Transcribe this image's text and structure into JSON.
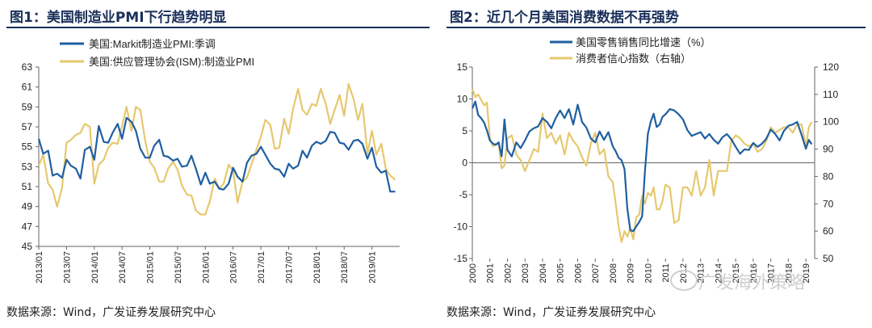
{
  "left": {
    "title": "图1：美国制造业PMI下行趋势明显",
    "source": "数据来源：Wind，广发证券发展研究中心",
    "chart_data": {
      "type": "line",
      "legend_position": "top-left",
      "ylim": [
        45,
        63
      ],
      "yticks": [
        45,
        47,
        49,
        51,
        53,
        55,
        57,
        59,
        61,
        63
      ],
      "xlim": [
        2013.0,
        2019.5
      ],
      "xtick_labels": [
        "2013/01",
        "2013/07",
        "2014/01",
        "2014/07",
        "2015/01",
        "2015/07",
        "2016/01",
        "2016/07",
        "2017/01",
        "2017/07",
        "2018/01",
        "2018/07",
        "2019/01"
      ],
      "xtick_values": [
        2013.0,
        2013.5,
        2014.0,
        2014.5,
        2015.0,
        2015.5,
        2016.0,
        2016.5,
        2017.0,
        2017.5,
        2018.0,
        2018.5,
        2019.0
      ],
      "series": [
        {
          "name": "美国:Markit制造业PMI:季调",
          "color": "#1f5fa1",
          "x": [
            2013.0,
            2013.08,
            2013.17,
            2013.25,
            2013.33,
            2013.42,
            2013.5,
            2013.58,
            2013.67,
            2013.75,
            2013.83,
            2013.92,
            2014.0,
            2014.08,
            2014.17,
            2014.25,
            2014.33,
            2014.42,
            2014.5,
            2014.58,
            2014.67,
            2014.75,
            2014.83,
            2014.92,
            2015.0,
            2015.08,
            2015.17,
            2015.25,
            2015.33,
            2015.42,
            2015.5,
            2015.58,
            2015.67,
            2015.75,
            2015.83,
            2015.92,
            2016.0,
            2016.08,
            2016.17,
            2016.25,
            2016.33,
            2016.42,
            2016.5,
            2016.58,
            2016.67,
            2016.75,
            2016.83,
            2016.92,
            2017.0,
            2017.08,
            2017.17,
            2017.25,
            2017.33,
            2017.42,
            2017.5,
            2017.58,
            2017.67,
            2017.75,
            2017.83,
            2017.92,
            2018.0,
            2018.08,
            2018.17,
            2018.25,
            2018.33,
            2018.42,
            2018.5,
            2018.58,
            2018.67,
            2018.75,
            2018.83,
            2018.92,
            2019.0,
            2019.08,
            2019.17,
            2019.25,
            2019.33,
            2019.42
          ],
          "values": [
            55.8,
            54.3,
            54.6,
            52.1,
            52.3,
            51.9,
            53.7,
            53.1,
            52.8,
            51.8,
            54.7,
            55.0,
            53.7,
            57.1,
            55.5,
            55.4,
            56.4,
            57.3,
            55.8,
            57.9,
            57.5,
            56.6,
            54.8,
            53.9,
            53.9,
            55.1,
            55.7,
            54.1,
            54.0,
            53.6,
            53.8,
            53.0,
            53.1,
            54.1,
            52.8,
            51.2,
            52.4,
            51.3,
            51.5,
            50.8,
            50.7,
            51.3,
            52.9,
            52.0,
            51.5,
            53.4,
            54.1,
            54.3,
            55.0,
            54.2,
            53.3,
            52.8,
            52.7,
            52.0,
            53.3,
            52.8,
            53.1,
            54.6,
            53.9,
            55.1,
            55.5,
            55.3,
            55.6,
            56.5,
            56.4,
            55.4,
            55.3,
            54.7,
            55.6,
            55.7,
            55.3,
            53.8,
            54.9,
            53.0,
            52.4,
            52.6,
            50.5,
            50.5
          ]
        },
        {
          "name": "美国:供应管理协会(ISM):制造业PMI",
          "color": "#e6c86e",
          "x": [
            2013.0,
            2013.08,
            2013.17,
            2013.25,
            2013.33,
            2013.42,
            2013.5,
            2013.58,
            2013.67,
            2013.75,
            2013.83,
            2013.92,
            2014.0,
            2014.08,
            2014.17,
            2014.25,
            2014.33,
            2014.42,
            2014.5,
            2014.58,
            2014.67,
            2014.75,
            2014.83,
            2014.92,
            2015.0,
            2015.08,
            2015.17,
            2015.25,
            2015.33,
            2015.42,
            2015.5,
            2015.58,
            2015.67,
            2015.75,
            2015.83,
            2015.92,
            2016.0,
            2016.08,
            2016.17,
            2016.25,
            2016.33,
            2016.42,
            2016.5,
            2016.58,
            2016.67,
            2016.75,
            2016.83,
            2016.92,
            2017.0,
            2017.08,
            2017.17,
            2017.25,
            2017.33,
            2017.42,
            2017.5,
            2017.58,
            2017.67,
            2017.75,
            2017.83,
            2017.92,
            2018.0,
            2018.08,
            2018.17,
            2018.25,
            2018.33,
            2018.42,
            2018.5,
            2018.58,
            2018.67,
            2018.75,
            2018.83,
            2018.92,
            2019.0,
            2019.08,
            2019.17,
            2019.25,
            2019.33,
            2019.42
          ],
          "values": [
            53.1,
            54.2,
            51.3,
            50.7,
            49.0,
            50.9,
            55.4,
            55.7,
            56.2,
            56.4,
            57.3,
            57.0,
            51.3,
            53.2,
            53.7,
            54.9,
            55.4,
            55.3,
            57.1,
            59.0,
            56.6,
            59.0,
            58.7,
            55.5,
            53.5,
            52.9,
            51.5,
            51.5,
            52.8,
            53.5,
            52.7,
            51.1,
            50.2,
            50.1,
            48.6,
            48.2,
            48.2,
            49.5,
            51.8,
            50.8,
            51.3,
            53.2,
            52.6,
            49.4,
            51.5,
            51.9,
            53.2,
            54.7,
            56.0,
            57.7,
            57.2,
            54.8,
            54.9,
            57.8,
            56.3,
            58.8,
            60.8,
            58.7,
            58.2,
            59.3,
            59.1,
            60.8,
            59.3,
            57.3,
            58.7,
            60.2,
            58.1,
            61.3,
            59.8,
            57.7,
            59.3,
            54.3,
            56.6,
            54.2,
            55.3,
            52.8,
            52.1,
            51.7
          ]
        }
      ]
    }
  },
  "right": {
    "title": "图2：近几个月美国消费数据不再强势",
    "source": "数据来源：Wind，广发证券发展研究中心",
    "watermark": "广发海外策略",
    "chart_data": {
      "type": "line",
      "legend_position": "top-left",
      "ylim_left": [
        -15,
        15
      ],
      "yticks_left": [
        -15,
        -10,
        -5,
        0,
        5,
        10,
        15
      ],
      "ylim_right": [
        50,
        120
      ],
      "yticks_right": [
        50,
        60,
        70,
        80,
        90,
        100,
        110,
        120
      ],
      "xlim": [
        2000.0,
        2019.5
      ],
      "xtick_labels": [
        "2000",
        "2001",
        "2002",
        "2003",
        "2004",
        "2005",
        "2006",
        "2007",
        "2008",
        "2009",
        "2010",
        "2011",
        "2012",
        "2013",
        "2014",
        "2015",
        "2016",
        "2017",
        "2018",
        "2019"
      ],
      "xtick_values": [
        2000,
        2001,
        2002,
        2003,
        2004,
        2005,
        2006,
        2007,
        2008,
        2009,
        2010,
        2011,
        2012,
        2013,
        2014,
        2015,
        2016,
        2017,
        2018,
        2019
      ],
      "series": [
        {
          "name": "美国零售销售同比增速（%）",
          "axis": "left",
          "color": "#1f5fa1",
          "x": [
            2000.0,
            2000.17,
            2000.33,
            2000.5,
            2000.67,
            2000.83,
            2001.0,
            2001.17,
            2001.33,
            2001.5,
            2001.67,
            2001.83,
            2002.0,
            2002.25,
            2002.5,
            2002.75,
            2003.0,
            2003.25,
            2003.5,
            2003.75,
            2004.0,
            2004.25,
            2004.5,
            2004.75,
            2005.0,
            2005.25,
            2005.5,
            2005.75,
            2006.0,
            2006.25,
            2006.5,
            2006.75,
            2007.0,
            2007.25,
            2007.5,
            2007.75,
            2008.0,
            2008.17,
            2008.33,
            2008.5,
            2008.67,
            2008.83,
            2009.0,
            2009.17,
            2009.33,
            2009.5,
            2009.67,
            2009.83,
            2010.0,
            2010.17,
            2010.33,
            2010.5,
            2010.67,
            2010.83,
            2011.0,
            2011.25,
            2011.5,
            2011.75,
            2012.0,
            2012.25,
            2012.5,
            2012.75,
            2013.0,
            2013.25,
            2013.5,
            2013.75,
            2014.0,
            2014.25,
            2014.5,
            2014.75,
            2015.0,
            2015.25,
            2015.5,
            2015.75,
            2016.0,
            2016.25,
            2016.5,
            2016.75,
            2017.0,
            2017.25,
            2017.5,
            2017.75,
            2018.0,
            2018.25,
            2018.5,
            2018.75,
            2019.0,
            2019.17,
            2019.33
          ],
          "values": [
            8.5,
            9.6,
            7.5,
            7.0,
            6.3,
            5.1,
            3.5,
            3.0,
            2.8,
            3.2,
            1.0,
            6.8,
            2.0,
            1.0,
            3.2,
            2.3,
            3.5,
            4.9,
            5.4,
            5.7,
            7.0,
            6.4,
            5.4,
            7.0,
            8.2,
            7.0,
            8.4,
            6.0,
            9.1,
            6.4,
            5.5,
            3.8,
            3.2,
            4.9,
            3.6,
            4.8,
            2.6,
            1.8,
            0.8,
            0.4,
            -1.0,
            -7.2,
            -10.6,
            -10.7,
            -10.0,
            -9.3,
            -8.4,
            -1.5,
            4.5,
            6.5,
            7.7,
            5.6,
            6.0,
            7.2,
            7.6,
            8.4,
            8.2,
            7.6,
            6.8,
            5.1,
            4.2,
            4.5,
            4.8,
            3.8,
            4.5,
            3.6,
            3.0,
            4.0,
            4.5,
            3.7,
            2.5,
            1.4,
            2.1,
            2.0,
            3.1,
            2.5,
            3.0,
            3.8,
            5.2,
            4.5,
            3.5,
            5.0,
            5.8,
            6.0,
            6.4,
            4.4,
            2.2,
            3.6,
            2.9
          ]
        },
        {
          "name": "消费者信心指数（右轴）",
          "axis": "right",
          "color": "#e6c86e",
          "x": [
            2000.0,
            2000.17,
            2000.33,
            2000.5,
            2000.67,
            2000.83,
            2001.0,
            2001.17,
            2001.33,
            2001.5,
            2001.67,
            2001.83,
            2002.0,
            2002.25,
            2002.5,
            2002.75,
            2003.0,
            2003.25,
            2003.5,
            2003.75,
            2004.0,
            2004.25,
            2004.5,
            2004.75,
            2005.0,
            2005.25,
            2005.5,
            2005.75,
            2006.0,
            2006.25,
            2006.5,
            2006.75,
            2007.0,
            2007.25,
            2007.5,
            2007.75,
            2008.0,
            2008.17,
            2008.33,
            2008.5,
            2008.67,
            2008.83,
            2009.0,
            2009.17,
            2009.33,
            2009.5,
            2009.67,
            2009.83,
            2010.0,
            2010.17,
            2010.33,
            2010.5,
            2010.67,
            2010.83,
            2011.0,
            2011.25,
            2011.5,
            2011.75,
            2012.0,
            2012.25,
            2012.5,
            2012.75,
            2013.0,
            2013.25,
            2013.5,
            2013.75,
            2014.0,
            2014.25,
            2014.5,
            2014.75,
            2015.0,
            2015.25,
            2015.5,
            2015.75,
            2016.0,
            2016.25,
            2016.5,
            2016.75,
            2017.0,
            2017.25,
            2017.5,
            2017.75,
            2018.0,
            2018.25,
            2018.5,
            2018.75,
            2019.0,
            2019.17,
            2019.33
          ],
          "values": [
            112,
            109,
            110,
            108,
            106,
            107,
            94,
            91,
            92,
            92,
            83,
            84,
            94,
            95,
            88,
            86,
            82,
            86,
            90,
            89,
            103,
            94,
            96,
            92,
            95,
            88,
            96,
            93,
            91,
            87,
            84,
            92,
            96,
            88,
            90,
            80,
            78,
            70,
            62,
            56,
            60,
            58,
            61,
            57,
            65,
            66,
            73,
            70,
            74,
            73,
            76,
            68,
            68,
            71,
            77,
            76,
            63,
            64,
            76,
            76,
            73,
            82,
            73,
            76,
            86,
            73,
            82,
            82,
            82,
            93,
            95,
            94,
            92,
            91,
            92,
            89,
            90,
            93,
            98,
            96,
            97,
            98,
            98,
            96,
            99,
            99,
            91,
            98,
            100
          ]
        }
      ]
    }
  }
}
